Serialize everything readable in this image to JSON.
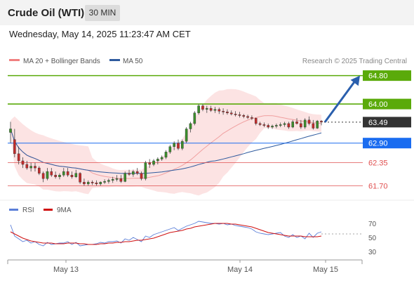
{
  "header": {
    "instrument": "Crude Oil (WTI)",
    "timeframe": "30 MIN"
  },
  "datetime": "Wednesday, May 14, 2025 11:23:47 AM CET",
  "legend": {
    "bb": "MA 20 + Bollinger Bands",
    "ma50": "MA 50",
    "rsi": "RSI",
    "ma9": "9MA",
    "source": "Research © 2025 Trading Central"
  },
  "colors": {
    "green": "#5aaa0a",
    "blue_level": "#1a6cf0",
    "red_level": "#e05050",
    "bb_fill": "#fbd9d9",
    "bb_line": "#f0a0a0",
    "ma50": "#2e5a9e",
    "candle_up": "#3b8e2b",
    "candle_down": "#c42b2b",
    "rsi": "#5b7fd8",
    "ma9": "#d01010",
    "arrow": "#2a5fad",
    "current": "#333333"
  },
  "chart_data": [
    {
      "type": "candlestick",
      "title": "",
      "xlabel": "",
      "ylabel": "",
      "x_ticks": [
        "May 13",
        "May 14",
        "May 15"
      ],
      "ylim": [
        61.47,
        65.03
      ],
      "levels": [
        {
          "value": 64.8,
          "label": "64.80",
          "kind": "resistance"
        },
        {
          "value": 64.0,
          "label": "64.00",
          "kind": "resistance"
        },
        {
          "value": 63.49,
          "label": "63.49",
          "kind": "current"
        },
        {
          "value": 62.9,
          "label": "62.90",
          "kind": "pivot"
        },
        {
          "value": 62.35,
          "label": "62.35",
          "kind": "support"
        },
        {
          "value": 61.7,
          "label": "61.70",
          "kind": "support"
        }
      ],
      "candles": [
        [
          63.2,
          63.5,
          62.9,
          63.3
        ],
        [
          63.0,
          63.3,
          62.5,
          62.6
        ],
        [
          62.6,
          62.8,
          62.3,
          62.4
        ],
        [
          62.4,
          62.5,
          62.2,
          62.3
        ],
        [
          62.3,
          62.4,
          62.15,
          62.2
        ],
        [
          62.2,
          62.35,
          62.1,
          62.25
        ],
        [
          62.25,
          62.35,
          62.1,
          62.2
        ],
        [
          62.2,
          62.25,
          62.0,
          62.05
        ],
        [
          62.05,
          62.1,
          61.8,
          61.9
        ],
        [
          61.9,
          62.2,
          61.85,
          62.1
        ],
        [
          62.1,
          62.2,
          61.95,
          62.0
        ],
        [
          62.0,
          62.1,
          61.9,
          61.95
        ],
        [
          61.95,
          62.05,
          61.88,
          62.0
        ],
        [
          62.0,
          62.2,
          61.95,
          62.1
        ],
        [
          62.1,
          62.2,
          61.95,
          62.0
        ],
        [
          62.0,
          62.1,
          61.9,
          61.95
        ],
        [
          61.95,
          62.15,
          61.92,
          62.05
        ],
        [
          62.05,
          62.08,
          61.75,
          61.8
        ],
        [
          61.8,
          61.9,
          61.7,
          61.75
        ],
        [
          61.75,
          61.85,
          61.7,
          61.8
        ],
        [
          61.8,
          61.85,
          61.72,
          61.78
        ],
        [
          61.78,
          61.85,
          61.7,
          61.75
        ],
        [
          61.75,
          61.82,
          61.7,
          61.8
        ],
        [
          61.8,
          61.88,
          61.75,
          61.82
        ],
        [
          61.82,
          61.9,
          61.76,
          61.85
        ],
        [
          61.85,
          61.95,
          61.78,
          61.88
        ],
        [
          61.88,
          62.0,
          61.82,
          61.9
        ],
        [
          61.9,
          62.0,
          61.78,
          61.82
        ],
        [
          61.82,
          62.1,
          61.8,
          62.05
        ],
        [
          62.05,
          62.15,
          61.98,
          62.02
        ],
        [
          62.02,
          62.15,
          61.95,
          62.1
        ],
        [
          62.1,
          62.2,
          62.0,
          62.05
        ],
        [
          62.05,
          62.1,
          61.85,
          61.9
        ],
        [
          61.9,
          62.4,
          61.85,
          62.35
        ],
        [
          62.35,
          62.45,
          62.2,
          62.3
        ],
        [
          62.3,
          62.45,
          62.25,
          62.4
        ],
        [
          62.4,
          62.5,
          62.3,
          62.45
        ],
        [
          62.45,
          62.55,
          62.4,
          62.5
        ],
        [
          62.5,
          62.7,
          62.45,
          62.65
        ],
        [
          62.65,
          62.85,
          62.6,
          62.8
        ],
        [
          62.8,
          62.95,
          62.7,
          62.9
        ],
        [
          62.9,
          63.0,
          62.7,
          62.75
        ],
        [
          62.75,
          63.0,
          62.7,
          62.95
        ],
        [
          62.95,
          63.35,
          62.9,
          63.3
        ],
        [
          63.3,
          63.5,
          63.2,
          63.45
        ],
        [
          63.45,
          63.8,
          63.4,
          63.75
        ],
        [
          63.75,
          64.0,
          63.7,
          63.95
        ],
        [
          63.95,
          64.0,
          63.8,
          63.85
        ],
        [
          63.85,
          63.95,
          63.75,
          63.88
        ],
        [
          63.88,
          63.95,
          63.78,
          63.82
        ],
        [
          63.82,
          63.92,
          63.75,
          63.85
        ],
        [
          63.85,
          63.9,
          63.72,
          63.8
        ],
        [
          63.8,
          63.88,
          63.7,
          63.78
        ],
        [
          63.78,
          63.85,
          63.7,
          63.75
        ],
        [
          63.75,
          63.82,
          63.68,
          63.72
        ],
        [
          63.72,
          63.8,
          63.65,
          63.7
        ],
        [
          63.7,
          63.78,
          63.62,
          63.68
        ],
        [
          63.68,
          63.72,
          63.6,
          63.65
        ],
        [
          63.65,
          63.7,
          63.58,
          63.62
        ],
        [
          63.62,
          63.68,
          63.55,
          63.6
        ],
        [
          63.6,
          63.62,
          63.4,
          63.45
        ],
        [
          63.45,
          63.5,
          63.38,
          63.42
        ],
        [
          63.42,
          63.48,
          63.35,
          63.4
        ],
        [
          63.4,
          63.45,
          63.3,
          63.35
        ],
        [
          63.35,
          63.42,
          63.3,
          63.38
        ],
        [
          63.38,
          63.45,
          63.32,
          63.4
        ],
        [
          63.4,
          63.48,
          63.35,
          63.42
        ],
        [
          63.42,
          63.5,
          63.36,
          63.45
        ],
        [
          63.45,
          63.5,
          63.3,
          63.35
        ],
        [
          63.35,
          63.55,
          63.32,
          63.5
        ],
        [
          63.5,
          63.6,
          63.42,
          63.45
        ],
        [
          63.45,
          63.55,
          63.3,
          63.35
        ],
        [
          63.35,
          63.6,
          63.3,
          63.55
        ],
        [
          63.55,
          63.65,
          63.4,
          63.45
        ],
        [
          63.45,
          63.55,
          63.28,
          63.32
        ],
        [
          63.32,
          63.55,
          63.3,
          63.52
        ],
        [
          63.52,
          63.55,
          63.4,
          63.49
        ]
      ]
    },
    {
      "type": "line",
      "title": "",
      "ylim": [
        20,
        80
      ],
      "y_ticks": [
        70,
        50,
        30
      ],
      "reference_line": 55,
      "series": [
        {
          "name": "RSI",
          "values": [
            68,
            52,
            48,
            44,
            46,
            42,
            44,
            40,
            38,
            43,
            40,
            41,
            42,
            42,
            44,
            40,
            43,
            38,
            39,
            40,
            40,
            41,
            43,
            42,
            44,
            44,
            45,
            42,
            48,
            46,
            50,
            47,
            44,
            52,
            50,
            54,
            56,
            58,
            60,
            62,
            64,
            60,
            63,
            66,
            68,
            70,
            73,
            72,
            71,
            70,
            70,
            69,
            70,
            68,
            69,
            67,
            66,
            65,
            64,
            62,
            58,
            56,
            55,
            54,
            55,
            56,
            57,
            52,
            50,
            54,
            50,
            52,
            48,
            56,
            50,
            56,
            58
          ]
        },
        {
          "name": "9MA",
          "values": [
            58,
            55,
            52,
            49,
            47,
            45,
            44,
            43,
            42,
            42,
            42,
            41,
            41,
            41,
            42,
            42,
            42,
            41,
            41,
            40,
            40,
            40,
            41,
            41,
            42,
            42,
            43,
            43,
            44,
            44,
            45,
            46,
            46,
            47,
            48,
            49,
            51,
            53,
            55,
            57,
            58,
            59,
            60,
            62,
            63,
            65,
            66,
            67,
            68,
            69,
            70,
            70,
            70,
            70,
            69,
            69,
            68,
            67,
            66,
            65,
            63,
            61,
            59,
            57,
            56,
            55,
            54,
            53,
            52,
            52,
            52,
            52,
            51,
            51,
            51,
            51,
            52
          ]
        }
      ]
    }
  ]
}
